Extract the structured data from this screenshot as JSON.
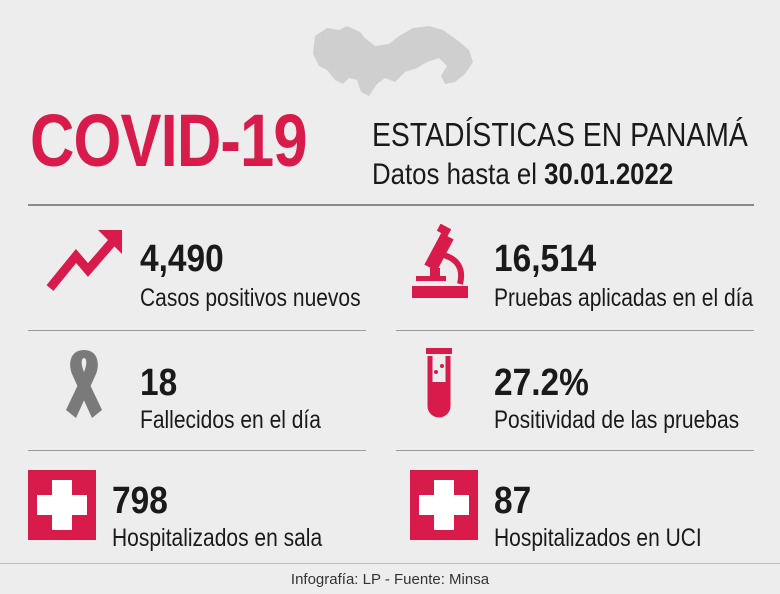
{
  "header": {
    "title": "COVID-19",
    "subtitle": "ESTADÍSTICAS EN PANAMÁ",
    "date_prefix": "Datos hasta el",
    "date": "30.01.2022"
  },
  "stats": [
    {
      "value": "4,490",
      "label": "Casos positivos nuevos",
      "icon": "trend-up-arrow-icon"
    },
    {
      "value": "16,514",
      "label": "Pruebas aplicadas en el día",
      "icon": "microscope-icon"
    },
    {
      "value": "18",
      "label": "Fallecidos en el día",
      "icon": "ribbon-icon"
    },
    {
      "value": "27.2%",
      "label": "Positividad de las pruebas",
      "icon": "test-tube-icon"
    },
    {
      "value": "798",
      "label": "Hospitalizados en sala",
      "icon": "medical-cross-icon"
    },
    {
      "value": "87",
      "label": "Hospitalizados en UCI",
      "icon": "medical-cross-icon"
    }
  ],
  "footer": "Infografía: LP - Fuente: Minsa",
  "colors": {
    "accent": "#d81b4a",
    "background": "#ededed",
    "ribbon": "#7a7a7a",
    "map": "#cfcfcf"
  }
}
